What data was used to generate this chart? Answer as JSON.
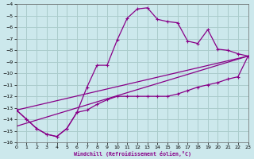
{
  "xlabel": "Windchill (Refroidissement éolien,°C)",
  "xlim": [
    0,
    23
  ],
  "ylim": [
    -16,
    -4
  ],
  "xticks": [
    0,
    1,
    2,
    3,
    4,
    5,
    6,
    7,
    8,
    9,
    10,
    11,
    12,
    13,
    14,
    15,
    16,
    17,
    18,
    19,
    20,
    21,
    22,
    23
  ],
  "yticks": [
    -4,
    -5,
    -6,
    -7,
    -8,
    -9,
    -10,
    -11,
    -12,
    -13,
    -14,
    -15,
    -16
  ],
  "bg_color": "#cce8ec",
  "grid_color": "#aacccc",
  "line_color": "#880088",
  "series_zigzag_x": [
    0,
    1,
    2,
    3,
    4,
    5,
    6,
    7,
    8,
    9,
    10,
    11,
    12,
    13,
    14,
    15,
    16,
    17,
    18,
    19,
    20,
    21,
    22,
    23
  ],
  "series_zigzag_y": [
    -13.2,
    -14.0,
    -14.8,
    -15.3,
    -15.5,
    -14.8,
    -13.4,
    -11.2,
    -9.3,
    -9.3,
    -7.1,
    -5.2,
    -4.4,
    -4.3,
    -5.3,
    -5.5,
    -5.6,
    -7.2,
    -7.4,
    -6.2,
    -7.9,
    -8.0,
    -8.3,
    -8.5
  ],
  "series_flat_x": [
    0,
    1,
    2,
    3,
    4,
    5,
    6,
    7,
    8,
    9,
    10,
    11,
    12,
    13,
    14,
    15,
    16,
    17,
    18,
    19,
    20,
    21,
    22,
    23
  ],
  "series_flat_y": [
    -13.2,
    -14.0,
    -14.8,
    -15.3,
    -15.5,
    -14.8,
    -13.4,
    -13.2,
    -12.7,
    -12.3,
    -12.0,
    -12.0,
    -12.0,
    -12.0,
    -12.0,
    -12.0,
    -11.8,
    -11.5,
    -11.2,
    -11.0,
    -10.8,
    -10.5,
    -10.3,
    -8.5
  ],
  "line1_x": [
    0,
    23
  ],
  "line1_y": [
    -13.2,
    -8.5
  ],
  "line2_x": [
    0,
    23
  ],
  "line2_y": [
    -14.6,
    -8.5
  ]
}
